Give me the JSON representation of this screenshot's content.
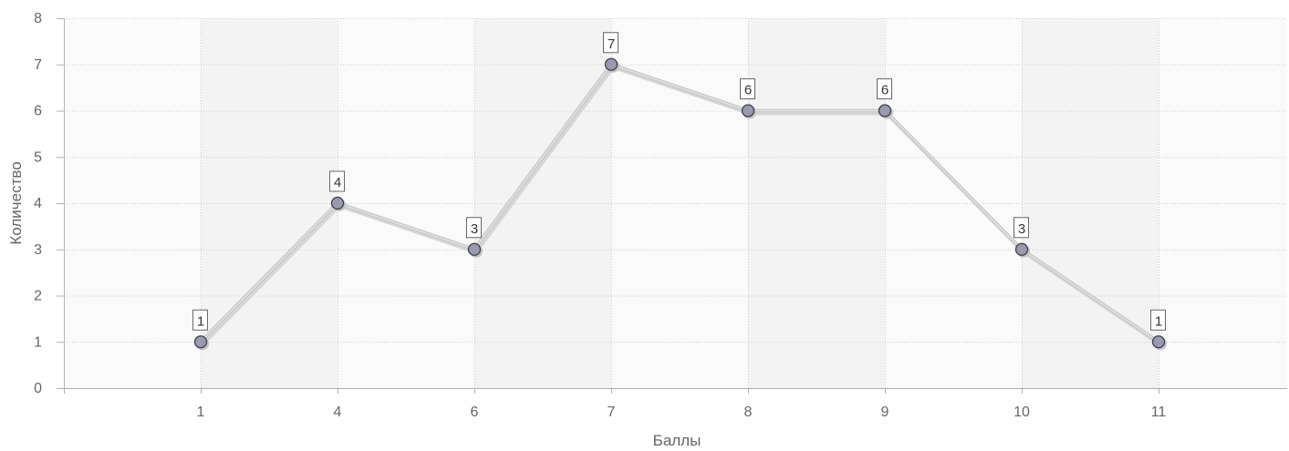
{
  "chart_data": {
    "type": "line",
    "categories": [
      "1",
      "4",
      "6",
      "7",
      "8",
      "9",
      "10",
      "11"
    ],
    "series": [
      {
        "values": [
          1,
          4,
          3,
          7,
          6,
          6,
          3,
          1
        ]
      }
    ],
    "xlabel": "Баллы",
    "ylabel": "Количество",
    "ylim": [
      0,
      8
    ],
    "yticks": [
      0,
      1,
      2,
      3,
      4,
      5,
      6,
      7,
      8
    ],
    "grid": true,
    "data_labels": true,
    "colors": {
      "line": "#c8c8c8",
      "marker_fill": "#9a9aae",
      "marker_stroke": "#3c3c50",
      "grid": "#cccccc",
      "band_dark": "#f3f3f3",
      "band_light": "#fafafa"
    }
  }
}
